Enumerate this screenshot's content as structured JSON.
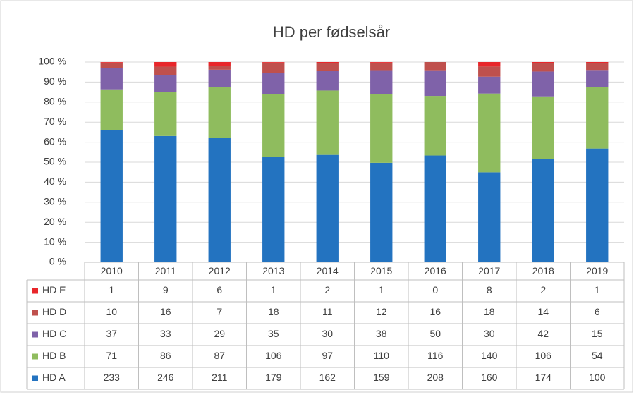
{
  "chart_data": {
    "type": "stacked_bar_100",
    "title": "HD per fødselsår",
    "categories": [
      "2010",
      "2011",
      "2012",
      "2013",
      "2014",
      "2015",
      "2016",
      "2017",
      "2018",
      "2019"
    ],
    "series": [
      {
        "name": "HD A",
        "color": "#2373c0",
        "values": [
          233,
          246,
          211,
          179,
          162,
          159,
          208,
          160,
          174,
          100
        ]
      },
      {
        "name": "HD B",
        "color": "#8fbc5e",
        "values": [
          71,
          86,
          87,
          106,
          97,
          110,
          116,
          140,
          106,
          54
        ]
      },
      {
        "name": "HD C",
        "color": "#7f62a9",
        "values": [
          37,
          33,
          29,
          35,
          30,
          38,
          50,
          30,
          42,
          15
        ]
      },
      {
        "name": "HD D",
        "color": "#bf504d",
        "values": [
          10,
          16,
          7,
          18,
          11,
          12,
          16,
          18,
          14,
          6
        ]
      },
      {
        "name": "HD E",
        "color": "#e8262a",
        "values": [
          1,
          9,
          6,
          1,
          2,
          1,
          0,
          8,
          2,
          1
        ]
      }
    ],
    "ylim": [
      0,
      100
    ],
    "yticks": [
      {
        "value": 0,
        "label": "0 %"
      },
      {
        "value": 10,
        "label": "10 %"
      },
      {
        "value": 20,
        "label": "20 %"
      },
      {
        "value": 30,
        "label": "30 %"
      },
      {
        "value": 40,
        "label": "40 %"
      },
      {
        "value": 50,
        "label": "50 %"
      },
      {
        "value": 60,
        "label": "60 %"
      },
      {
        "value": 70,
        "label": "70 %"
      },
      {
        "value": 80,
        "label": "80 %"
      },
      {
        "value": 90,
        "label": "90 %"
      },
      {
        "value": 100,
        "label": "100 %"
      }
    ],
    "grid": true
  }
}
